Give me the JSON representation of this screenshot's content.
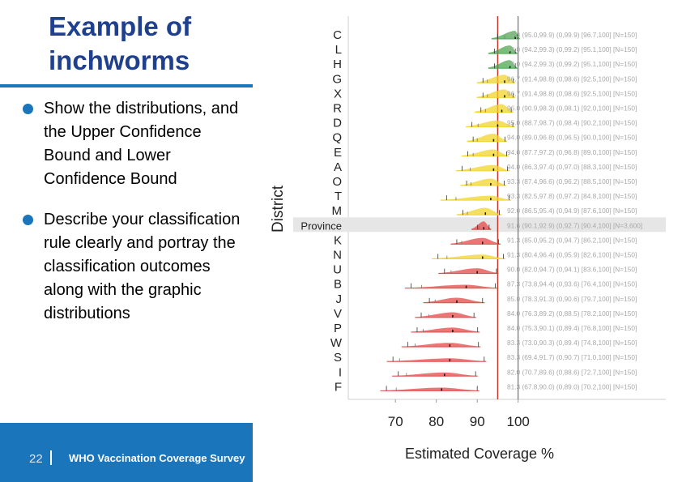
{
  "slide": {
    "title": "Example of\ninchworms",
    "bullets": [
      "Show the distributions, and the Upper Confidence Bound and Lower Confidence Bound",
      "Describe your classification rule clearly and portray the classification outcomes along with the graphic distributions"
    ],
    "slide_number": "22",
    "footer_text": "WHO Vaccination Coverage Survey",
    "colors": {
      "title": "#1f3f8f",
      "accent": "#1b75bb",
      "footer_bg": "#1b75bb"
    }
  },
  "chart_data": {
    "type": "distribution",
    "xlabel": "Estimated Coverage %",
    "ylabel": "District",
    "xlim": [
      66,
      104
    ],
    "x_ticks": [
      70,
      80,
      90,
      100
    ],
    "threshold_line": 95,
    "target_line": 100,
    "colors": {
      "green": "#49a94b",
      "yellow": "#f2d42c",
      "red": "#e64848",
      "threshold": "#c0392b"
    },
    "rows": [
      {
        "name": "C",
        "point": 99.3,
        "ci95": [
          95.0,
          99.9
        ],
        "lcb": 96.7,
        "color": "green",
        "text": "99.3 (95.0,99.9) (0,99.9) [96.7,100] [N=150]"
      },
      {
        "name": "L",
        "point": 98.0,
        "ci95": [
          94.2,
          99.3
        ],
        "lcb": 95.1,
        "color": "green",
        "text": "98.0 (94.2,99.3) (0,99.2) [95.1,100] [N=150]"
      },
      {
        "name": "H",
        "point": 98.0,
        "ci95": [
          94.2,
          99.3
        ],
        "lcb": 95.1,
        "color": "green",
        "text": "98.0 (94.2,99.3) (0,99.2) [95.1,100] [N=150]"
      },
      {
        "name": "G",
        "point": 96.7,
        "ci95": [
          91.4,
          98.8
        ],
        "lcb": 92.5,
        "color": "yellow",
        "text": "96.7 (91.4,98.8) (0,98.6) [92.5,100] [N=150]"
      },
      {
        "name": "X",
        "point": 96.7,
        "ci95": [
          91.4,
          98.8
        ],
        "lcb": 92.5,
        "color": "yellow",
        "text": "96.7 (91.4,98.8) (0,98.6) [92.5,100] [N=150]"
      },
      {
        "name": "R",
        "point": 96.0,
        "ci95": [
          90.9,
          98.3
        ],
        "lcb": 92.0,
        "color": "yellow",
        "text": "96.0 (90.9,98.3) (0,98.1) [92.0,100] [N=150]"
      },
      {
        "name": "D",
        "point": 95.0,
        "ci95": [
          88.7,
          98.7
        ],
        "lcb": 90.2,
        "color": "yellow",
        "text": "95.0 (88.7,98.7) (0,98.4) [90.2,100] [N=150]"
      },
      {
        "name": "Q",
        "point": 94.0,
        "ci95": [
          89.0,
          96.8
        ],
        "lcb": 90.0,
        "color": "yellow",
        "text": "94.0 (89.0,96.8) (0,96.5) [90.0,100] [N=150]"
      },
      {
        "name": "E",
        "point": 94.0,
        "ci95": [
          87.7,
          97.2
        ],
        "lcb": 89.0,
        "color": "yellow",
        "text": "94.0 (87.7,97.2) (0,96.8) [89.0,100] [N=150]"
      },
      {
        "name": "A",
        "point": 94.0,
        "ci95": [
          86.3,
          97.4
        ],
        "lcb": 88.3,
        "color": "yellow",
        "text": "94.0 (86.3,97.4) (0,97.0) [88.3,100] [N=150]"
      },
      {
        "name": "O",
        "point": 93.3,
        "ci95": [
          87.4,
          96.6
        ],
        "lcb": 88.5,
        "color": "yellow",
        "text": "93.3 (87.4,96.6) (0,96.2) [88.5,100] [N=150]"
      },
      {
        "name": "T",
        "point": 93.3,
        "ci95": [
          82.5,
          97.8
        ],
        "lcb": 84.8,
        "color": "yellow",
        "text": "93.3 (82.5,97.8) (0,97.2) [84.8,100] [N=150]"
      },
      {
        "name": "M",
        "point": 92.0,
        "ci95": [
          86.5,
          95.4
        ],
        "lcb": 87.6,
        "color": "yellow",
        "text": "92.0 (86.5,95.4) (0,94.9) [87.6,100] [N=150]"
      },
      {
        "name": "Province",
        "point": 91.6,
        "ci95": [
          90.1,
          92.9
        ],
        "lcb": 90.4,
        "color": "red",
        "highlight": true,
        "text": "91.6 (90.1,92.9) (0,92.7) [90.4,100] [N=3,600]"
      },
      {
        "name": "K",
        "point": 91.3,
        "ci95": [
          85.0,
          95.2
        ],
        "lcb": 86.2,
        "color": "red",
        "text": "91.3 (85.0,95.2) (0,94.7) [86.2,100] [N=150]"
      },
      {
        "name": "N",
        "point": 91.3,
        "ci95": [
          80.4,
          96.4
        ],
        "lcb": 82.6,
        "color": "yellow",
        "text": "91.3 (80.4,96.4) (0,95.9) [82.6,100] [N=150]"
      },
      {
        "name": "U",
        "point": 90.0,
        "ci95": [
          82.0,
          94.7
        ],
        "lcb": 83.6,
        "color": "red",
        "text": "90.0 (82.0,94.7) (0,94.1) [83.6,100] [N=150]"
      },
      {
        "name": "B",
        "point": 87.3,
        "ci95": [
          73.8,
          94.4
        ],
        "lcb": 76.4,
        "color": "red",
        "text": "87.3 (73.8,94.4) (0,93.6) [76.4,100] [N=150]"
      },
      {
        "name": "J",
        "point": 85.0,
        "ci95": [
          78.3,
          91.3
        ],
        "lcb": 79.7,
        "color": "red",
        "text": "85.0 (78.3,91.3) (0,90.6) [79.7,100] [N=150]"
      },
      {
        "name": "V",
        "point": 84.0,
        "ci95": [
          76.3,
          89.2
        ],
        "lcb": 78.2,
        "color": "red",
        "text": "84.0 (76.3,89.2) (0,88.5) [78.2,100] [N=150]"
      },
      {
        "name": "P",
        "point": 84.0,
        "ci95": [
          75.3,
          90.1
        ],
        "lcb": 76.8,
        "color": "red",
        "text": "84.0 (75.3,90.1) (0,89.4) [76.8,100] [N=150]"
      },
      {
        "name": "W",
        "point": 83.3,
        "ci95": [
          73.0,
          90.3
        ],
        "lcb": 74.8,
        "color": "red",
        "text": "83.3 (73.0,90.3) (0,89.4) [74.8,100] [N=150]"
      },
      {
        "name": "S",
        "point": 83.3,
        "ci95": [
          69.4,
          91.7
        ],
        "lcb": 71.0,
        "color": "red",
        "text": "83.3 (69.4,91.7) (0,90.7) [71.0,100] [N=150]"
      },
      {
        "name": "I",
        "point": 82.0,
        "ci95": [
          70.7,
          89.6
        ],
        "lcb": 72.7,
        "color": "red",
        "text": "82.0 (70.7,89.6) (0,88.6) [72.7,100] [N=150]"
      },
      {
        "name": "F",
        "point": 81.3,
        "ci95": [
          67.8,
          90.0
        ],
        "lcb": 70.2,
        "color": "red",
        "text": "81.3 (67.8,90.0) (0,89.0) [70.2,100] [N=150]"
      }
    ]
  }
}
